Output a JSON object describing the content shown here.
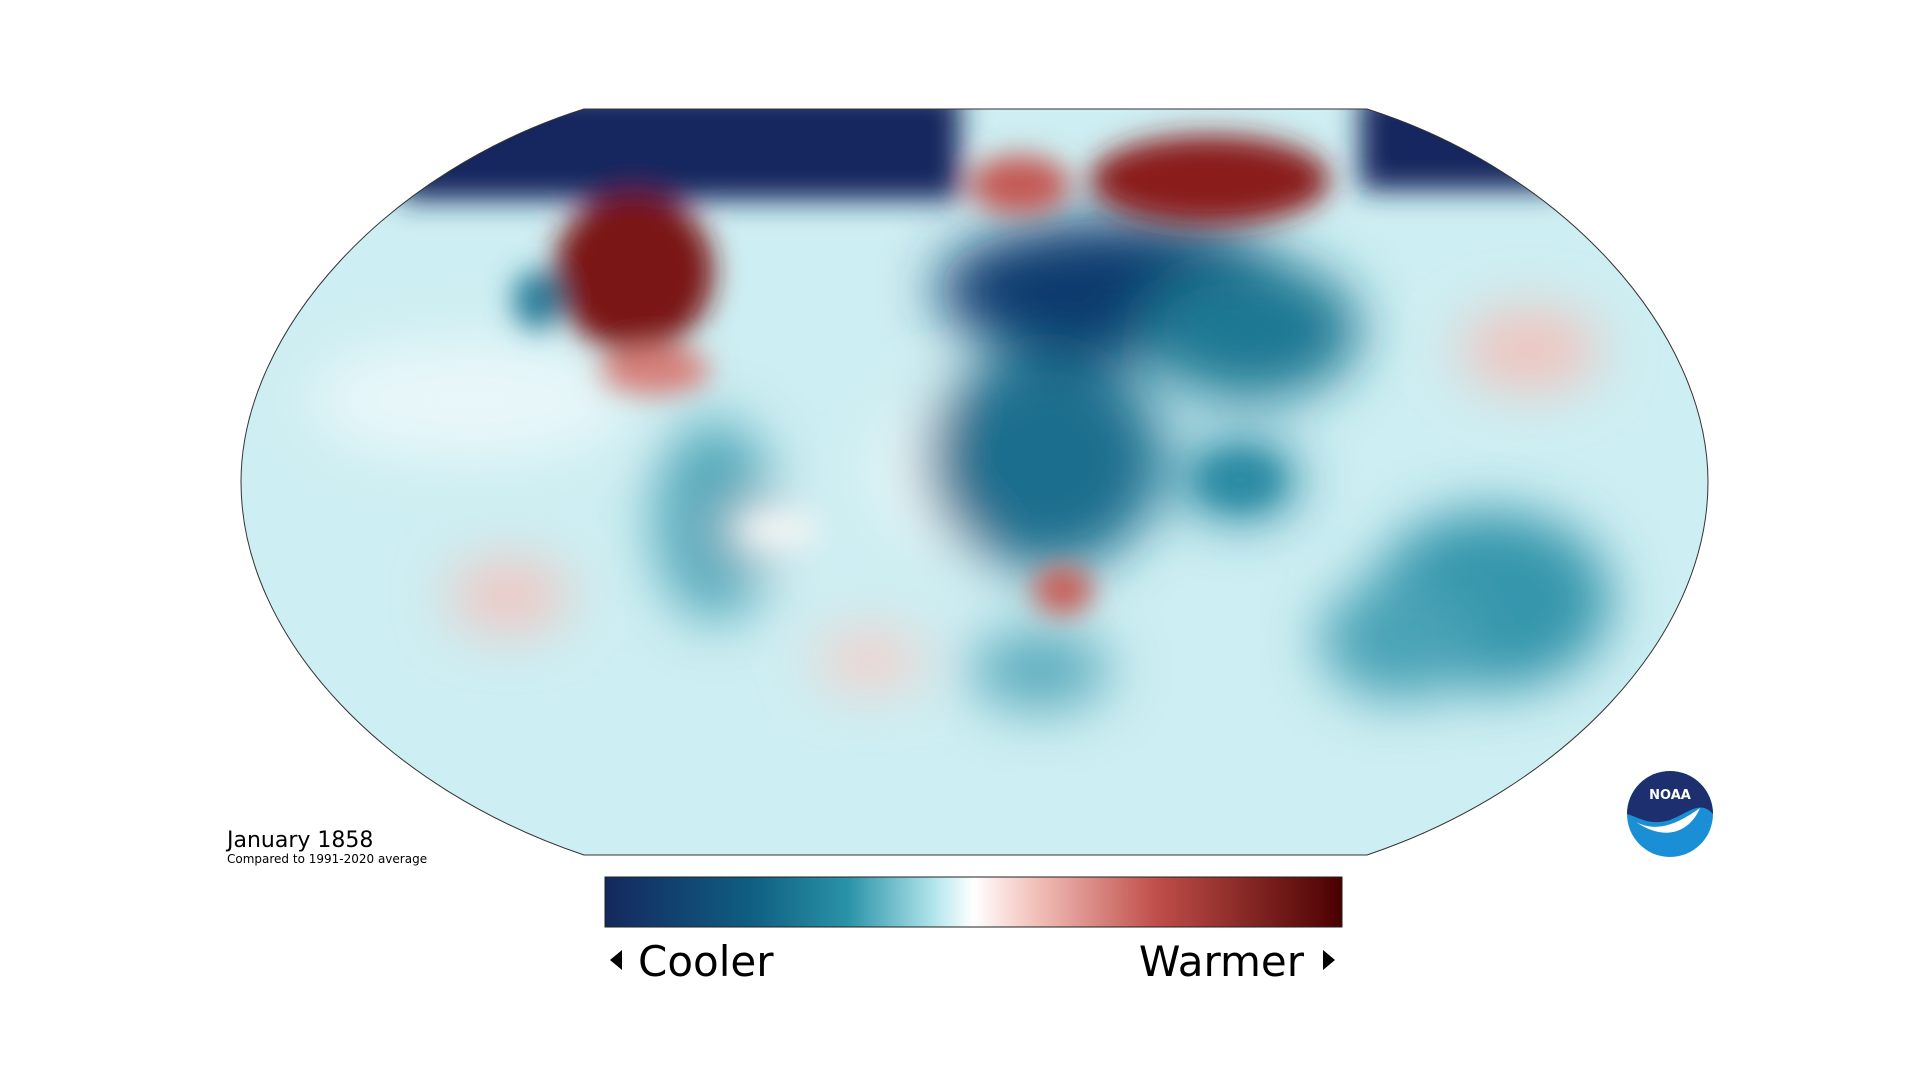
{
  "title": "January 1858",
  "subtitle": "Compared to 1991-2020 average",
  "legend": {
    "low": "Cooler",
    "high": "Warmer"
  },
  "logo": "NOAA"
}
